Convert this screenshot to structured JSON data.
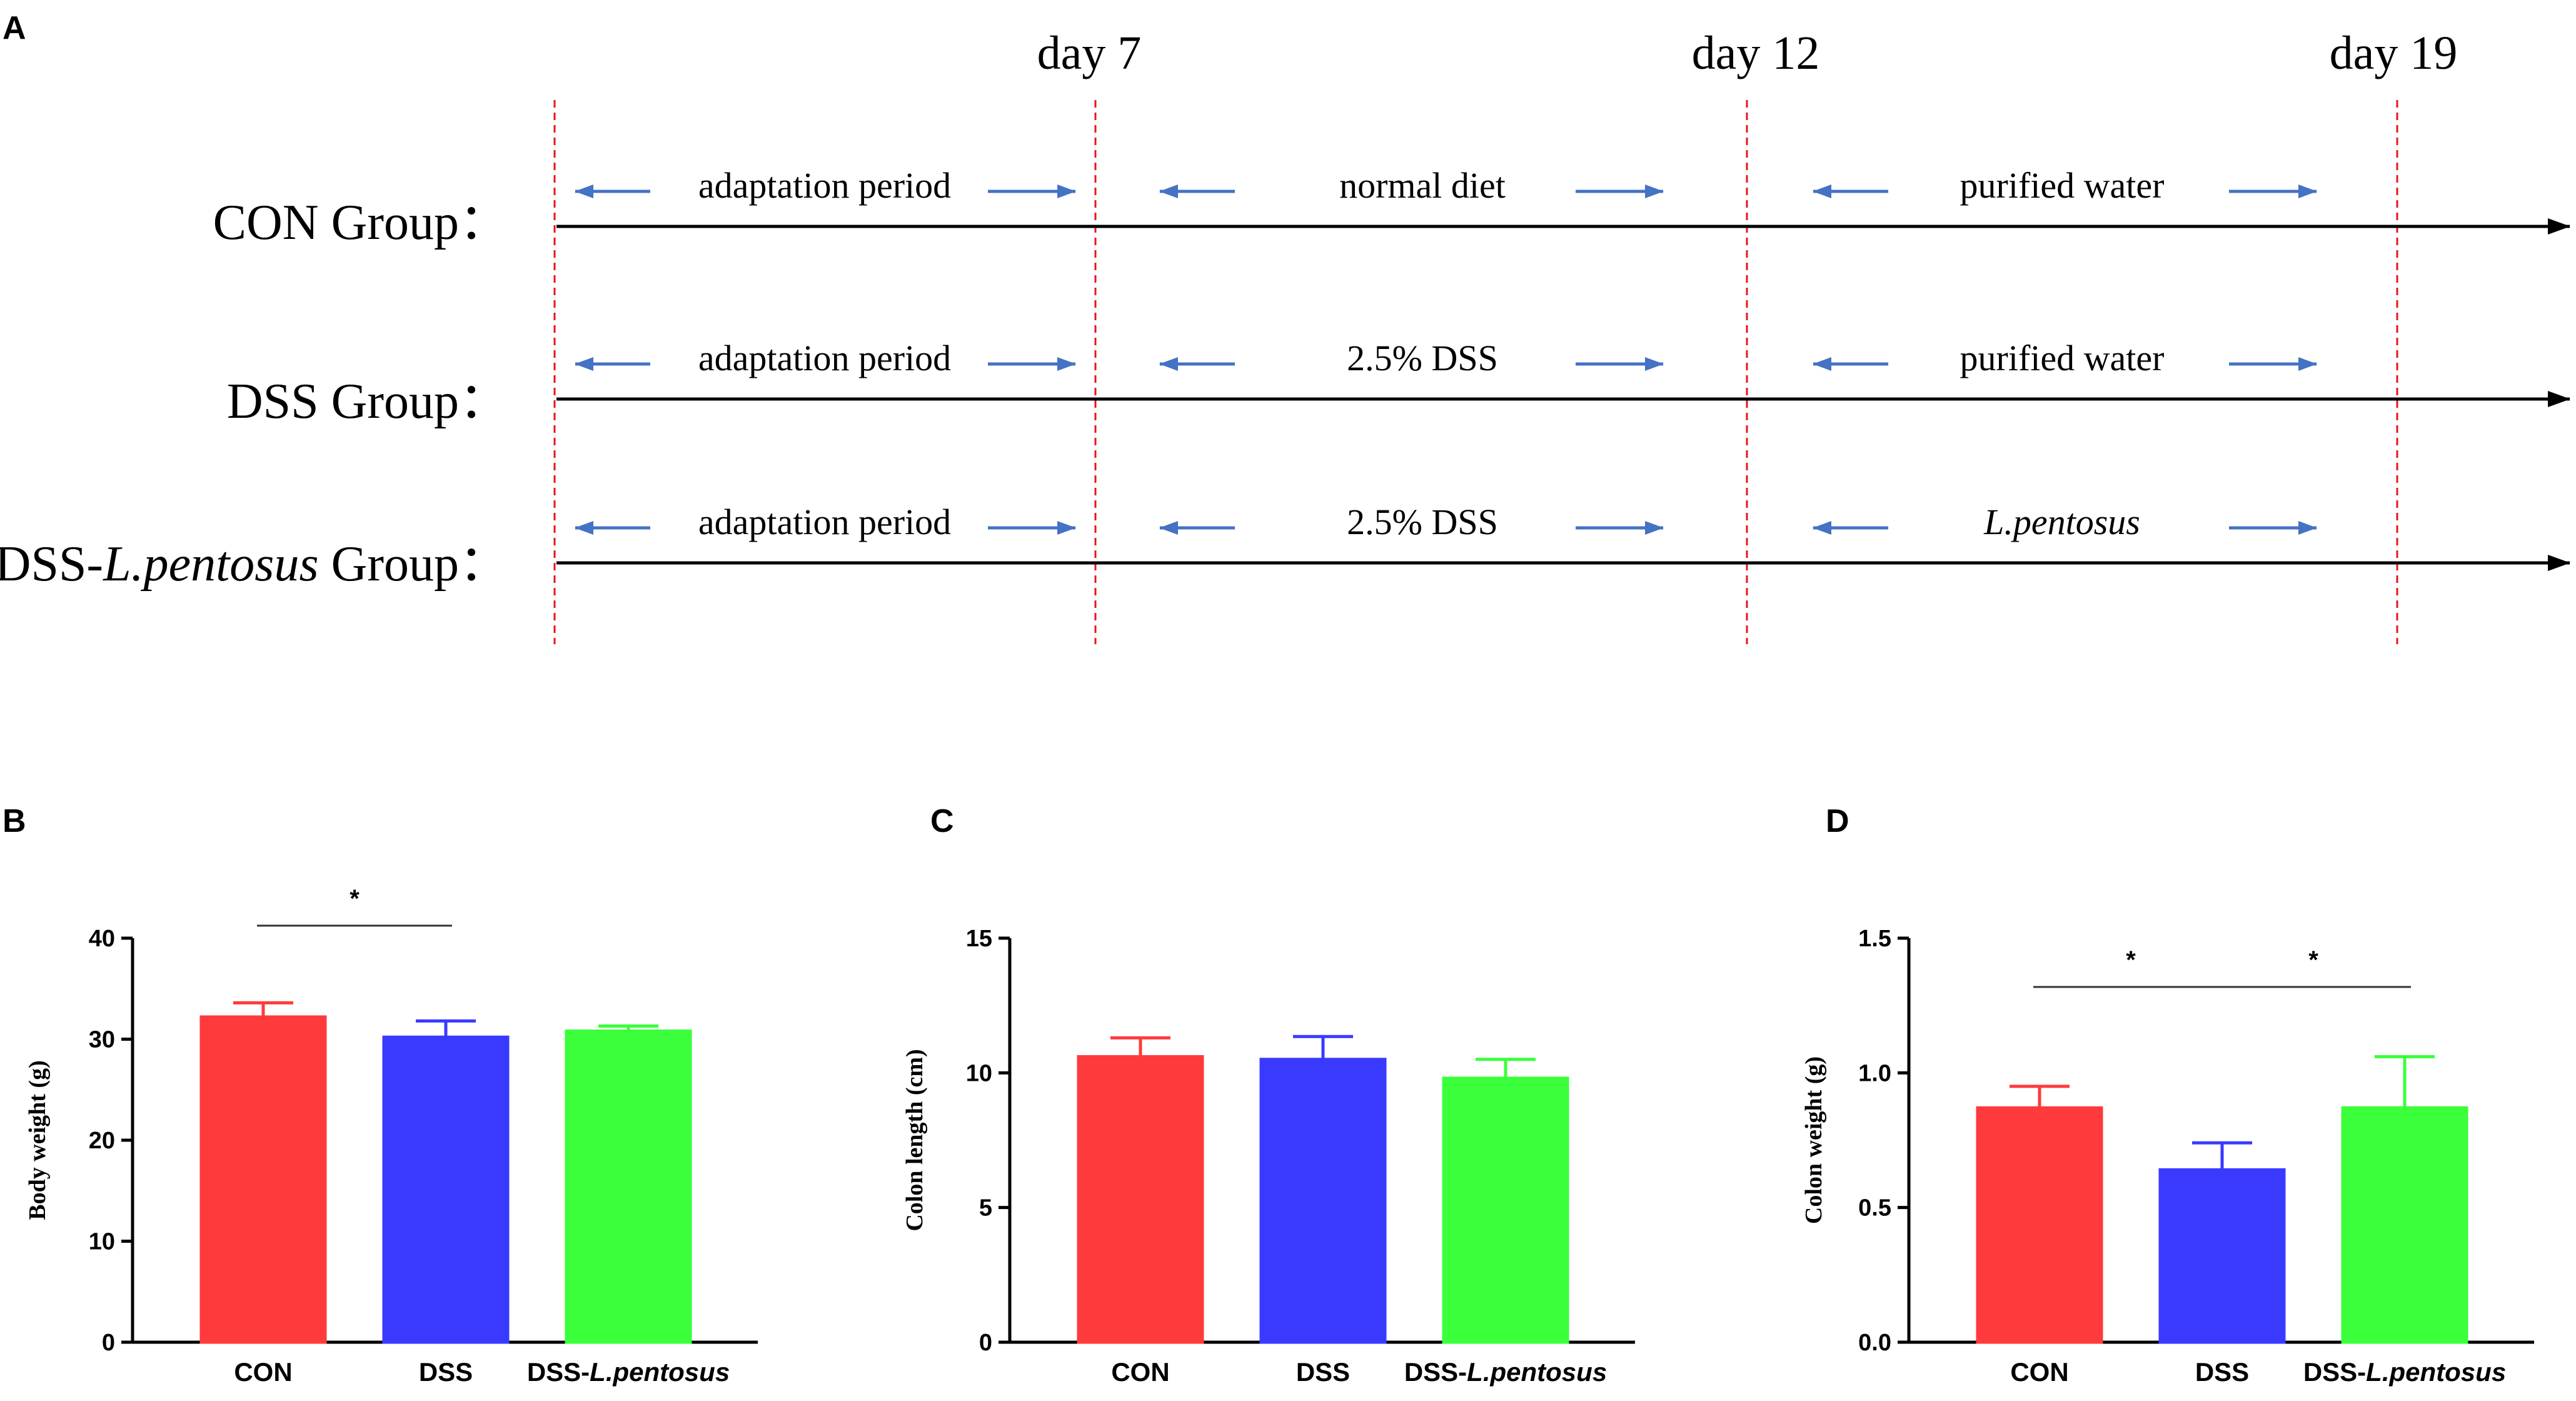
{
  "panel_a": {
    "letter": "A",
    "days": [
      "day 7",
      "day 12",
      "day 19"
    ],
    "groups": [
      {
        "label_parts": [
          "CON Group："
        ],
        "periods": [
          "adaptation period",
          "normal diet",
          "purified water"
        ]
      },
      {
        "label_parts": [
          "DSS Group："
        ],
        "periods": [
          "adaptation period",
          "2.5% DSS",
          "purified water"
        ]
      },
      {
        "label_parts": [
          "DSS-",
          "L.pentosus",
          " Group："
        ],
        "periods": [
          "adaptation period",
          "2.5% DSS",
          "L.pentosus"
        ]
      }
    ],
    "colors": {
      "arrow": "#4472c4",
      "dashed": "#e8141b",
      "axis": "#000000"
    }
  },
  "chart_data": [
    {
      "panel": "B",
      "type": "bar",
      "ylabel": "Body weight (g)",
      "ylim": [
        0,
        40
      ],
      "yticks": [
        "0",
        "10",
        "20",
        "30",
        "40"
      ],
      "categories": [
        [
          "CON"
        ],
        [
          "DSS"
        ],
        [
          "DSS-",
          "L.pentosus"
        ]
      ],
      "values": [
        32.2,
        30.2,
        30.8
      ],
      "errors": [
        1.4,
        1.6,
        0.5
      ],
      "colors": [
        "#ff3a3d",
        "#3a3aff",
        "#3aff3a"
      ],
      "stroke_colors": [
        "#ff3a3d",
        "#3a3aff",
        "#3aff3a"
      ],
      "significance": [
        {
          "from": 0,
          "to": 1,
          "label": "*"
        }
      ]
    },
    {
      "panel": "C",
      "type": "bar",
      "ylabel": "Colon length (cm)",
      "ylim": [
        0,
        15
      ],
      "yticks": [
        "0",
        "5",
        "10",
        "15"
      ],
      "categories": [
        [
          "CON"
        ],
        [
          "DSS"
        ],
        [
          "DSS-",
          "L.pentosus"
        ]
      ],
      "values": [
        10.6,
        10.5,
        9.8
      ],
      "errors": [
        0.7,
        0.85,
        0.7
      ],
      "colors": [
        "#ff3a3d",
        "#3a3aff",
        "#3aff3a"
      ],
      "stroke_colors": [
        "#ff3a3d",
        "#3a3aff",
        "#3aff3a"
      ],
      "significance": []
    },
    {
      "panel": "D",
      "type": "bar",
      "ylabel": "Colon weight  (g)",
      "ylim": [
        0,
        1.5
      ],
      "yticks": [
        "0.0",
        "0.5",
        "1.0",
        "1.5"
      ],
      "categories": [
        [
          "CON"
        ],
        [
          "DSS"
        ],
        [
          "DSS-",
          "L.pentosus"
        ]
      ],
      "values": [
        0.87,
        0.64,
        0.87
      ],
      "errors": [
        0.08,
        0.1,
        0.19
      ],
      "colors": [
        "#ff3a3d",
        "#3a3aff",
        "#3aff3a"
      ],
      "stroke_colors": [
        "#ff3a3d",
        "#3a3aff",
        "#3aff3a"
      ],
      "significance": [
        {
          "from": 0,
          "to": 1,
          "label": "*"
        },
        {
          "from": 1,
          "to": 2,
          "label": "*"
        }
      ]
    }
  ]
}
